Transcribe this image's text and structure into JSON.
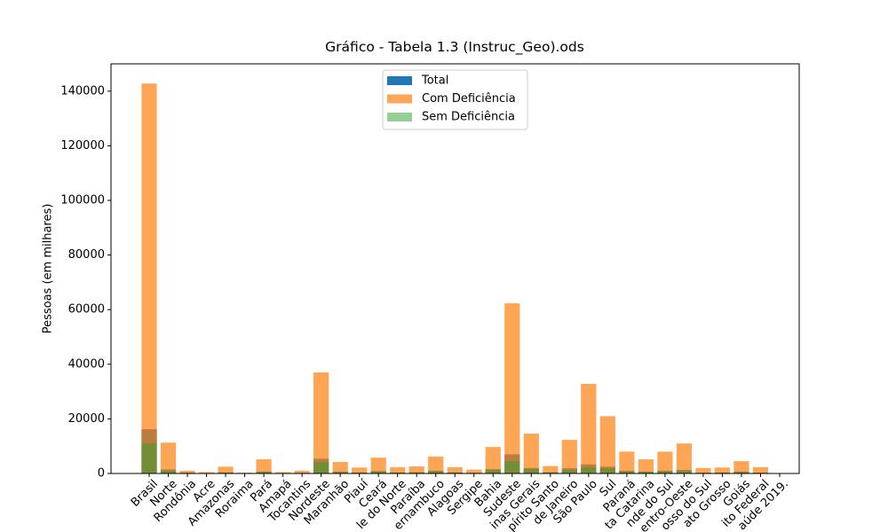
{
  "chart_data": {
    "type": "bar",
    "title": "Gráfico - Tabela 1.3 (Instruc_Geo).ods",
    "y_label": "Pessoas (em milhares)",
    "categories": [
      "Brasil",
      "Norte",
      "Rondônia",
      "Acre",
      "Amazonas",
      "Roraima",
      "Pará",
      "Amapá",
      "Tocantins",
      "Nordeste",
      "Maranhão",
      "Piauí",
      "Ceará",
      "le do Norte",
      "Paraíba",
      "ernambuco",
      "Alagoas",
      "Sergipe",
      "Bahia",
      "Sudeste",
      "inas Gerais",
      "pírito Santo",
      "de Janeiro",
      "São Paulo",
      "Sul",
      "Paraná",
      "ta Catarina",
      "nde do Sul",
      "entro-Oeste",
      "osso do Sul",
      "ato Grosso",
      "Goiás",
      "ito Federal",
      "aúde 2019."
    ],
    "series": [
      {
        "name": "Total",
        "color": "#1f77b4",
        "opacity": 1,
        "values": [
          16200,
          1500,
          300,
          150,
          400,
          100,
          700,
          150,
          250,
          5400,
          700,
          400,
          900,
          400,
          450,
          1000,
          400,
          250,
          1600,
          7000,
          2000,
          450,
          1900,
          3300,
          2500,
          1000,
          700,
          1000,
          1300,
          300,
          350,
          700,
          300,
          null
        ]
      },
      {
        "name": "Com Deficiência",
        "color": "#ff7f0e",
        "opacity": 0.7,
        "values": [
          142800,
          11300,
          1000,
          500,
          2500,
          300,
          5200,
          500,
          1000,
          37000,
          4200,
          2200,
          5800,
          2300,
          2600,
          6200,
          2300,
          1400,
          9700,
          62300,
          14600,
          2700,
          12300,
          32800,
          21000,
          8000,
          5200,
          8000,
          11000,
          2000,
          2200,
          4500,
          2300,
          null
        ]
      },
      {
        "name": "Sem Deficiência",
        "color": "#2ca02c",
        "opacity": 0.5,
        "values": [
          11000,
          1000,
          200,
          100,
          300,
          60,
          500,
          100,
          150,
          4200,
          500,
          300,
          700,
          300,
          350,
          800,
          300,
          200,
          1200,
          4500,
          1500,
          350,
          1300,
          2200,
          1800,
          700,
          500,
          700,
          900,
          200,
          250,
          500,
          200,
          null
        ]
      }
    ],
    "ylim": [
      0,
      150000
    ],
    "yticks": [
      0,
      20000,
      40000,
      60000,
      80000,
      100000,
      120000,
      140000
    ]
  }
}
